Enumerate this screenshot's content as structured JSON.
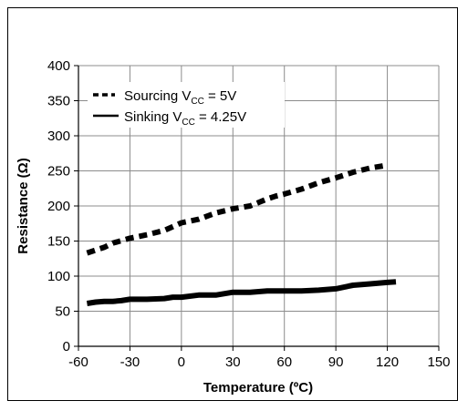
{
  "chart_data": {
    "type": "line",
    "xlabel": "Temperature (ºC)",
    "ylabel": "Resistance (Ω)",
    "xlim": [
      -60,
      150
    ],
    "ylim": [
      0,
      400
    ],
    "x_ticks": [
      "-60",
      "-30",
      "0",
      "30",
      "60",
      "90",
      "120",
      "150"
    ],
    "y_ticks": [
      "0",
      "50",
      "100",
      "150",
      "200",
      "250",
      "300",
      "350",
      "400"
    ],
    "grid": true,
    "legend_position": "top-left",
    "series": [
      {
        "legend_main": "Sourcing V",
        "legend_sub": "CC",
        "legend_tail": " = 5V",
        "style": "dashed",
        "color": "#000000",
        "x": [
          -55,
          -45,
          -40,
          -30,
          -20,
          -10,
          0,
          10,
          20,
          30,
          40,
          50,
          55,
          60,
          70,
          80,
          90,
          100,
          110,
          120
        ],
        "y": [
          133,
          141,
          147,
          154,
          159,
          165,
          176,
          181,
          190,
          196,
          200,
          210,
          214,
          217,
          224,
          233,
          240,
          248,
          254,
          258
        ]
      },
      {
        "legend_main": "Sinking V",
        "legend_sub": "CC",
        "legend_tail": " = 4.25V",
        "style": "solid",
        "color": "#000000",
        "x": [
          -55,
          -50,
          -45,
          -40,
          -35,
          -30,
          -20,
          -10,
          -5,
          0,
          10,
          20,
          30,
          40,
          50,
          60,
          70,
          80,
          90,
          100,
          110,
          120,
          125
        ],
        "y": [
          61,
          63,
          64,
          64,
          65,
          67,
          67,
          68,
          70,
          70,
          73,
          73,
          77,
          77,
          79,
          79,
          79,
          80,
          82,
          87,
          89,
          91,
          92
        ]
      }
    ]
  }
}
